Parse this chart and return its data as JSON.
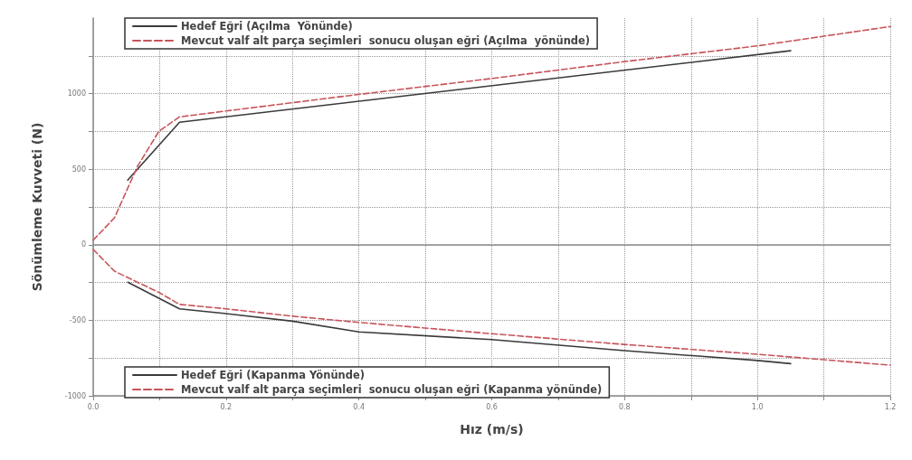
{
  "chart_data": {
    "type": "line",
    "xlabel": "Hız (m/s)",
    "ylabel": "Sönümleme Kuvveti (N)",
    "xlim": [
      0,
      1.2
    ],
    "ylim": [
      -1000,
      1500
    ],
    "xticks": [
      {
        "value": 0,
        "label": "0.0"
      },
      {
        "value": 0.1,
        "label": null
      },
      {
        "value": 0.2,
        "label": "0.2"
      },
      {
        "value": 0.3,
        "label": null
      },
      {
        "value": 0.4,
        "label": "0.4"
      },
      {
        "value": 0.5,
        "label": null
      },
      {
        "value": 0.6,
        "label": "0.6"
      },
      {
        "value": 0.7,
        "label": null
      },
      {
        "value": 0.8,
        "label": "0.8"
      },
      {
        "value": 0.9,
        "label": null
      },
      {
        "value": 1.0,
        "label": "1.0"
      },
      {
        "value": 1.1,
        "label": null
      },
      {
        "value": 1.2,
        "label": "1.2"
      }
    ],
    "yticks": [
      -1000,
      {
        "value": -750,
        "label": null
      },
      -500,
      {
        "value": -250,
        "label": null
      },
      0,
      {
        "value": 250,
        "label": null
      },
      500,
      {
        "value": 750,
        "label": null
      },
      1000,
      {
        "value": 1250,
        "label": null
      }
    ],
    "grid": true,
    "legend": "left",
    "marker": "none",
    "ref_lines": [
      {
        "axis": "y",
        "value": 0,
        "color": "#8c8c8c",
        "line_style": "solid"
      }
    ],
    "series": [
      {
        "name": "Hedef Eğri (Açılma  Yönünde)",
        "color": "#3a3a3a",
        "line_style": "solid",
        "x": [
          0.052,
          0.13,
          1.05
        ],
        "values": [
          428,
          811,
          1284
        ]
      },
      {
        "name": "Mevcut valf alt parça seçimleri  sonucu oluşan eğri (Açılma  yönünde)",
        "color": "#c8545a",
        "line_style": "dashed",
        "x": [
          0,
          0.032,
          0.067,
          0.099,
          0.13,
          0.2,
          0.4,
          0.6,
          0.8,
          1.0,
          1.2
        ],
        "values": [
          30,
          178,
          521,
          751,
          846,
          885,
          995,
          1100,
          1212,
          1316,
          1444
        ]
      },
      {
        "name": "Hedef Eğri (Kapanma Yönünde)",
        "color": "#3a3a3a",
        "line_style": "solid",
        "x": [
          0.052,
          0.13,
          0.2,
          0.3,
          0.4,
          0.6,
          0.8,
          1.0,
          1.05
        ],
        "values": [
          -248,
          -424,
          -456,
          -506,
          -577,
          -628,
          -701,
          -766,
          -787
        ]
      },
      {
        "name": "Mevcut valf alt parça seçimleri  sonucu oluşan eğri (Kapanma yönünde)",
        "color": "#c8545a",
        "line_style": "dashed",
        "x": [
          0,
          0.032,
          0.1,
          0.13,
          0.2,
          0.3,
          0.4,
          0.6,
          0.8,
          1.0,
          1.2
        ],
        "values": [
          -31,
          -175,
          -318,
          -395,
          -424,
          -473,
          -514,
          -589,
          -660,
          -725,
          -797
        ]
      }
    ]
  }
}
